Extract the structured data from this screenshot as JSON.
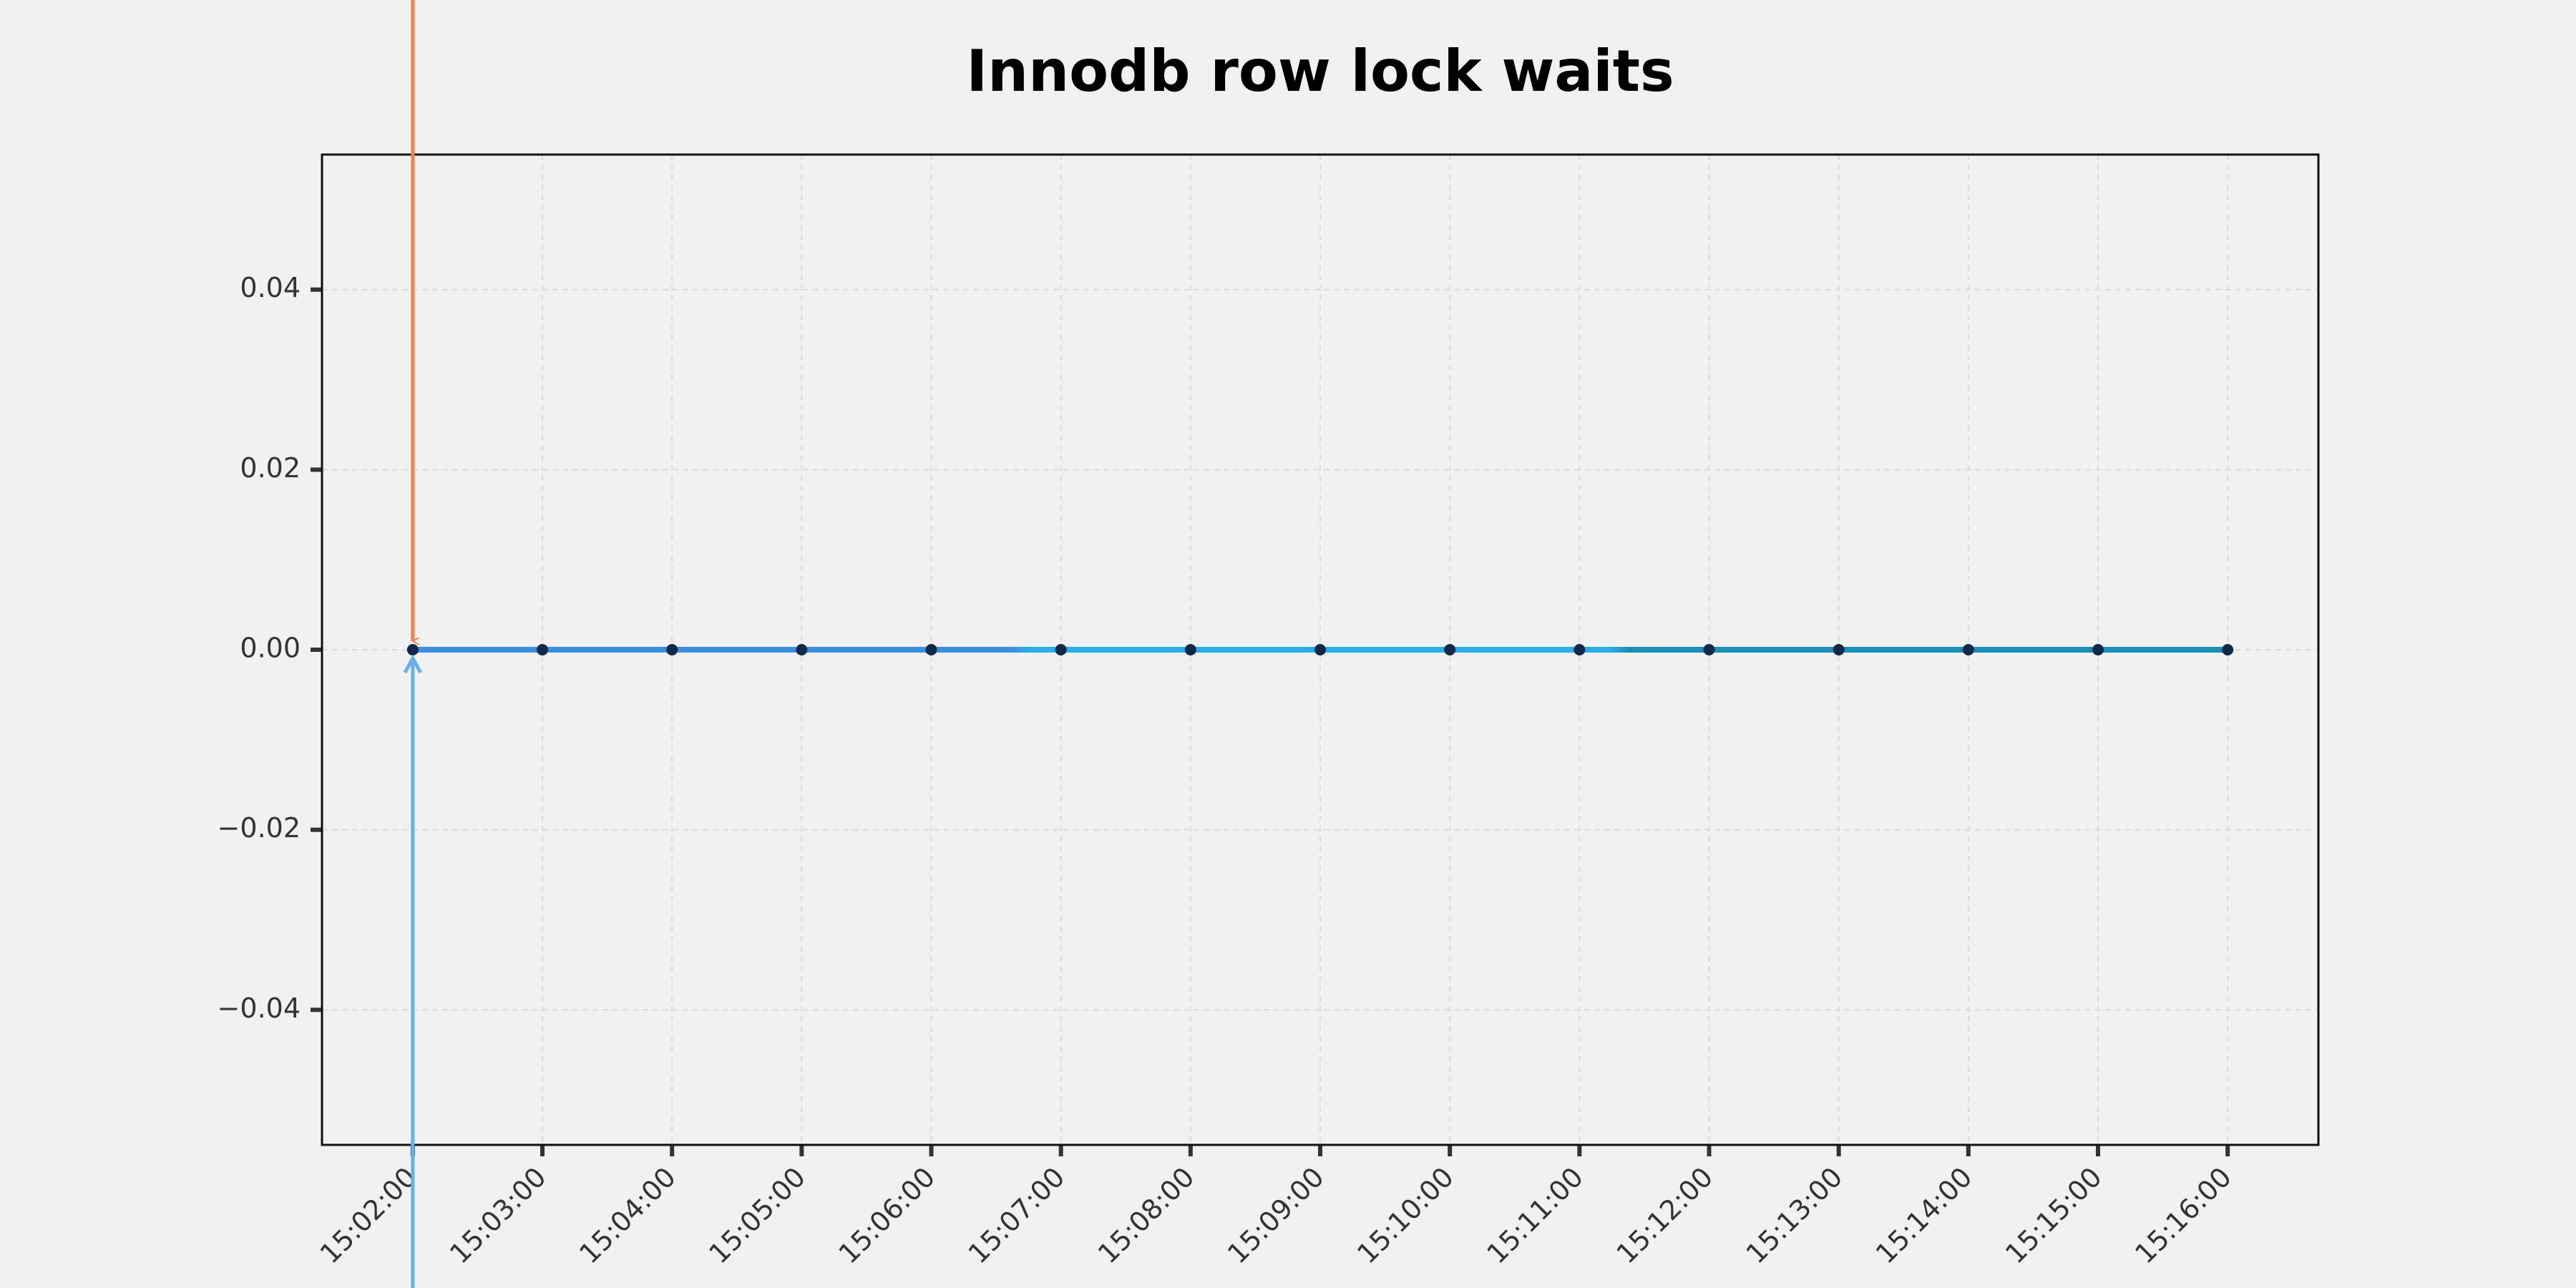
{
  "chart_data": {
    "type": "line",
    "title": "Innodb row lock waits",
    "categories": [
      "15:02:00",
      "15:03:00",
      "15:04:00",
      "15:05:00",
      "15:06:00",
      "15:07:00",
      "15:08:00",
      "15:09:00",
      "15:10:00",
      "15:11:00",
      "15:12:00",
      "15:13:00",
      "15:14:00",
      "15:15:00",
      "15:16:00"
    ],
    "series": [
      {
        "name": "Innodb row lock waits",
        "color": "#2fa6e6",
        "values": [
          0,
          0,
          0,
          0,
          0,
          0,
          0,
          0,
          0,
          0,
          0,
          0,
          0,
          0,
          0
        ]
      }
    ],
    "ylim": [
      -0.055,
      0.055
    ],
    "yticks": [
      {
        "value": -0.04,
        "label": "−0.04"
      },
      {
        "value": -0.02,
        "label": "−0.02"
      },
      {
        "value": 0,
        "label": "0.00"
      },
      0.02,
      0.04
    ],
    "grid": true
  }
}
